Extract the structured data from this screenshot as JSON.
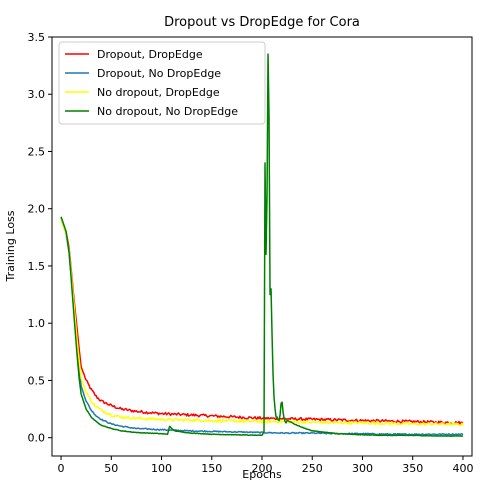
{
  "chart_data": {
    "type": "line",
    "title": "Dropout vs DropEdge for Cora",
    "xlabel": "Epochs",
    "ylabel": "Training Loss",
    "xlim": [
      -9,
      409
    ],
    "ylim": [
      -0.16,
      3.5
    ],
    "xticks": [
      0,
      50,
      100,
      150,
      200,
      250,
      300,
      350,
      400
    ],
    "yticks": [
      0.0,
      0.5,
      1.0,
      1.5,
      2.0,
      2.5,
      3.0,
      3.5
    ],
    "xtick_labels": [
      "0",
      "50",
      "100",
      "150",
      "200",
      "250",
      "300",
      "350",
      "400"
    ],
    "ytick_labels": [
      "0.0",
      "0.5",
      "1.0",
      "1.5",
      "2.0",
      "2.5",
      "3.0",
      "3.5"
    ],
    "grid": false,
    "legend_position": "top-left",
    "series": [
      {
        "name": "Dropout, DropEdge",
        "color": "#ff0000",
        "noise": 0.012,
        "x": [
          0,
          2,
          5,
          8,
          10,
          13,
          16,
          18,
          20,
          25,
          30,
          35,
          40,
          50,
          60,
          75,
          100,
          125,
          150,
          175,
          200,
          225,
          250,
          275,
          300,
          325,
          350,
          375,
          400
        ],
        "y": [
          1.92,
          1.86,
          1.8,
          1.66,
          1.48,
          1.2,
          0.95,
          0.78,
          0.62,
          0.5,
          0.42,
          0.36,
          0.32,
          0.28,
          0.25,
          0.23,
          0.21,
          0.2,
          0.19,
          0.18,
          0.17,
          0.165,
          0.16,
          0.155,
          0.15,
          0.145,
          0.14,
          0.135,
          0.13
        ]
      },
      {
        "name": "Dropout, No DropEdge",
        "color": "#1f77b4",
        "noise": 0.005,
        "x": [
          0,
          2,
          5,
          8,
          10,
          13,
          16,
          18,
          20,
          25,
          30,
          35,
          40,
          50,
          60,
          75,
          100,
          125,
          150,
          175,
          200,
          225,
          250,
          275,
          300,
          325,
          350,
          375,
          400
        ],
        "y": [
          1.92,
          1.86,
          1.78,
          1.62,
          1.42,
          1.1,
          0.8,
          0.6,
          0.45,
          0.32,
          0.24,
          0.19,
          0.16,
          0.12,
          0.1,
          0.08,
          0.07,
          0.06,
          0.055,
          0.05,
          0.045,
          0.04,
          0.04,
          0.035,
          0.035,
          0.03,
          0.03,
          0.03,
          0.03
        ]
      },
      {
        "name": "No dropout, DropEdge",
        "color": "#ffff00",
        "noise": 0.012,
        "x": [
          0,
          2,
          5,
          8,
          10,
          13,
          16,
          18,
          20,
          25,
          30,
          35,
          40,
          50,
          60,
          75,
          100,
          125,
          150,
          175,
          200,
          225,
          250,
          275,
          300,
          325,
          350,
          375,
          400
        ],
        "y": [
          1.92,
          1.86,
          1.78,
          1.64,
          1.45,
          1.15,
          0.85,
          0.68,
          0.52,
          0.4,
          0.32,
          0.27,
          0.24,
          0.2,
          0.18,
          0.17,
          0.16,
          0.155,
          0.15,
          0.145,
          0.14,
          0.14,
          0.135,
          0.13,
          0.13,
          0.125,
          0.12,
          0.12,
          0.115
        ]
      },
      {
        "name": "No dropout, No DropEdge",
        "color": "#008000",
        "noise": 0.002,
        "x": [
          0,
          2,
          5,
          8,
          10,
          13,
          16,
          18,
          20,
          25,
          30,
          35,
          40,
          50,
          60,
          75,
          100,
          106,
          108,
          110,
          113,
          120,
          130,
          150,
          175,
          200,
          202,
          203,
          204,
          205,
          206,
          207,
          208,
          209,
          210,
          211,
          212,
          213,
          214,
          215,
          216,
          217,
          218,
          219,
          220,
          221,
          222,
          223,
          224,
          225,
          228,
          232,
          240,
          250,
          260,
          275,
          300,
          325,
          350,
          375,
          400
        ],
        "y": [
          1.93,
          1.88,
          1.8,
          1.62,
          1.4,
          1.05,
          0.72,
          0.52,
          0.38,
          0.25,
          0.18,
          0.14,
          0.11,
          0.08,
          0.06,
          0.045,
          0.035,
          0.03,
          0.1,
          0.08,
          0.06,
          0.05,
          0.04,
          0.03,
          0.025,
          0.02,
          0.05,
          2.4,
          1.6,
          2.1,
          3.35,
          2.8,
          1.25,
          1.3,
          0.9,
          0.55,
          0.35,
          0.25,
          0.18,
          0.18,
          0.16,
          0.15,
          0.2,
          0.3,
          0.31,
          0.22,
          0.17,
          0.14,
          0.13,
          0.15,
          0.14,
          0.12,
          0.09,
          0.06,
          0.05,
          0.035,
          0.025,
          0.02,
          0.02,
          0.015,
          0.015
        ]
      }
    ]
  }
}
